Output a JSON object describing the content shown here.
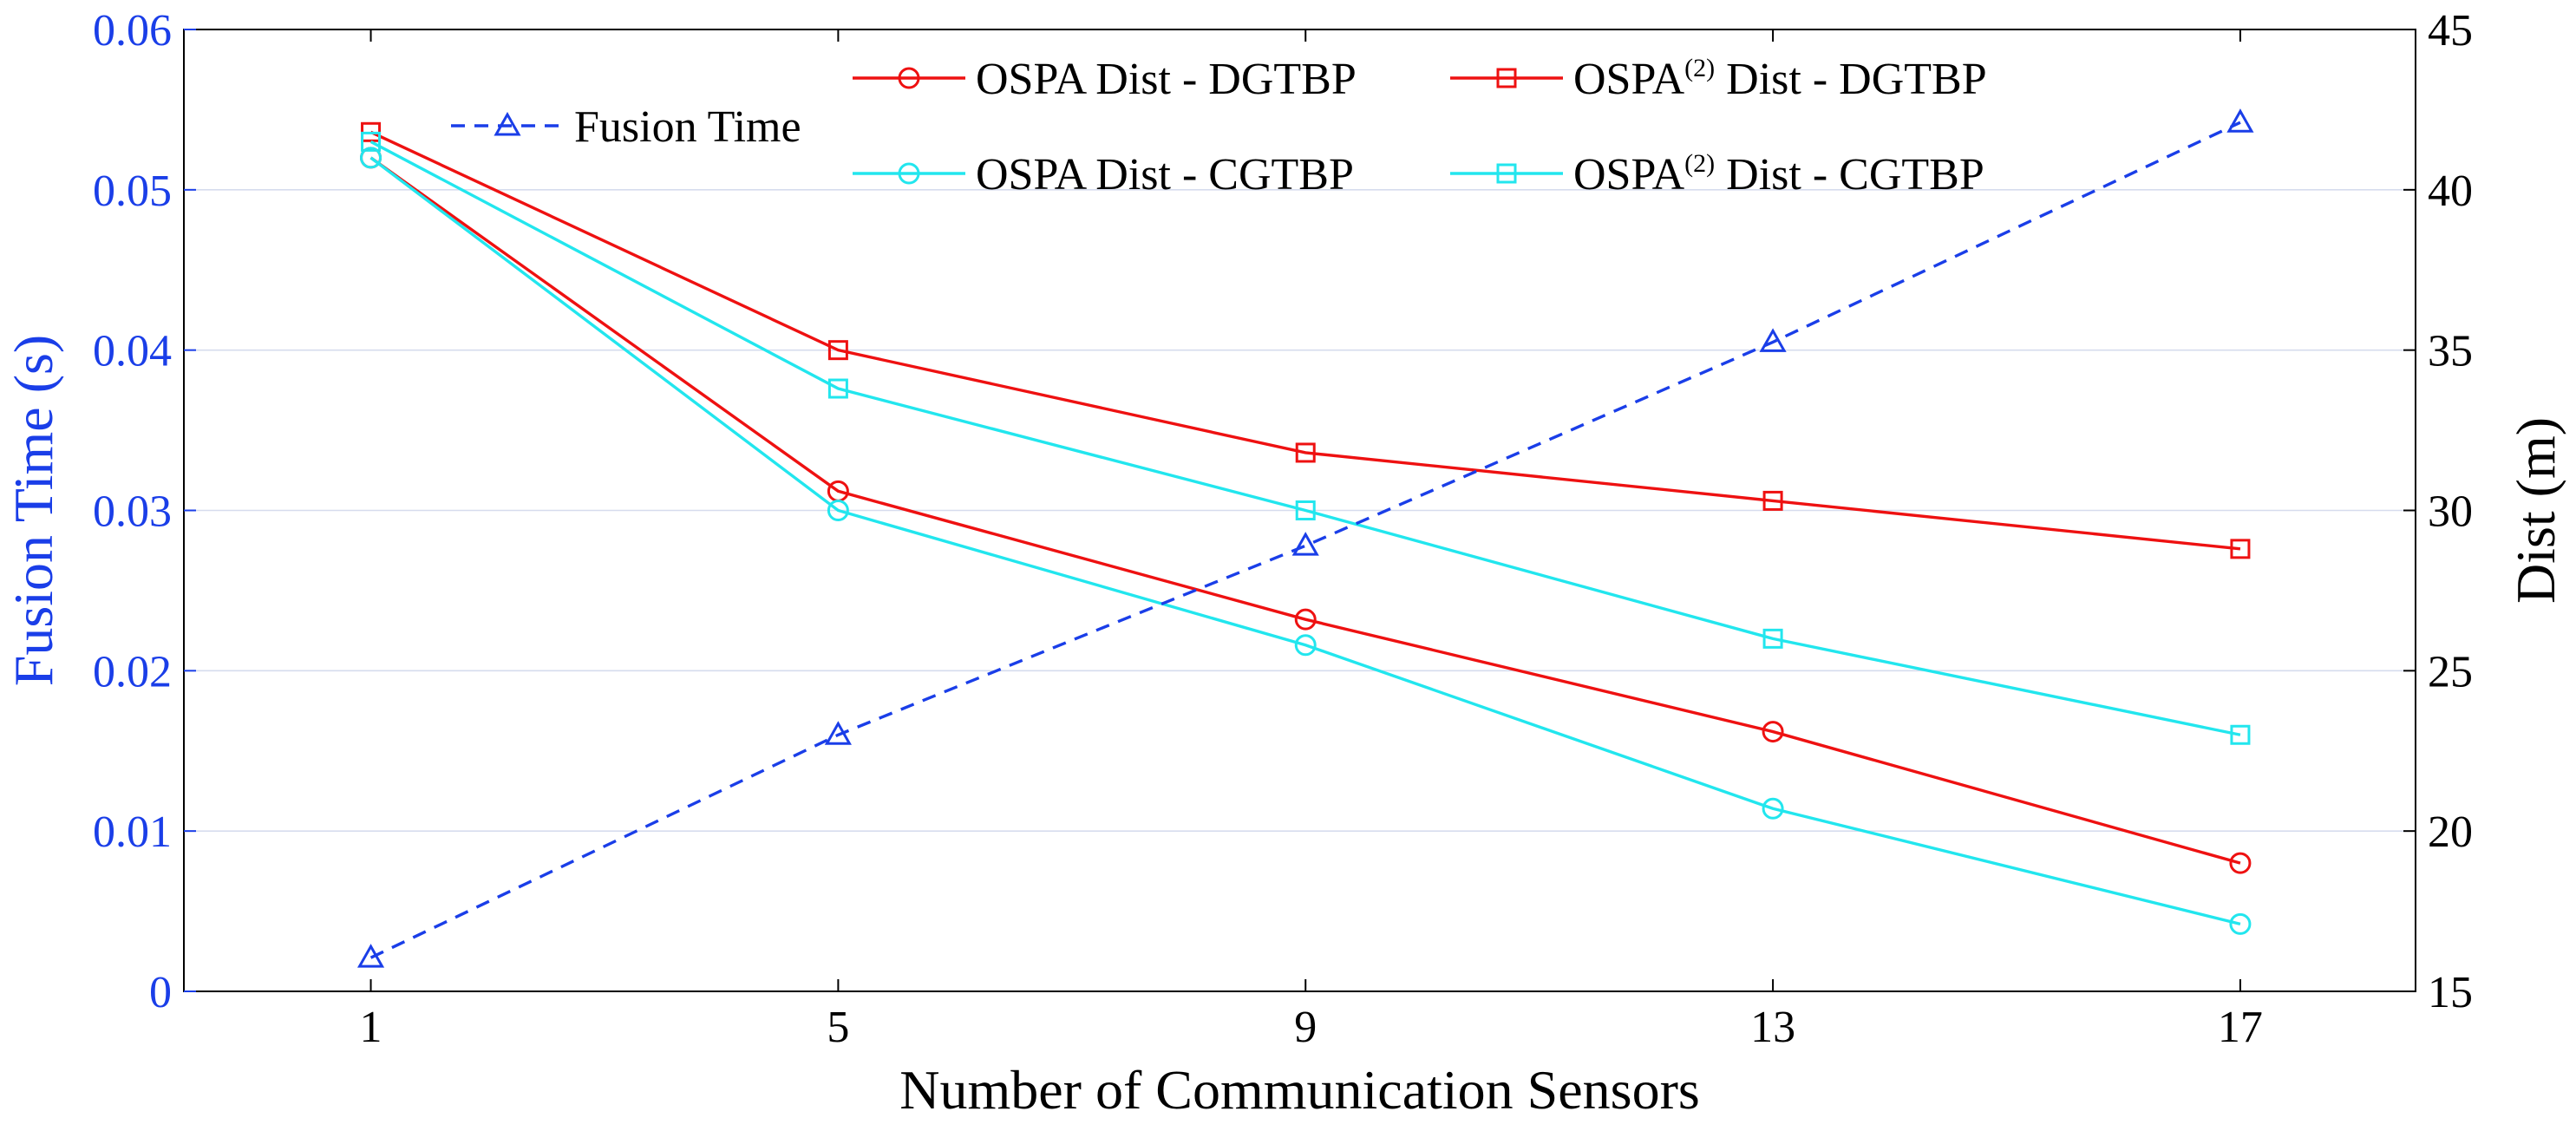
{
  "chart_data": {
    "type": "line",
    "xlabel": "Number of Communication Sensors",
    "x": [
      1,
      5,
      9,
      13,
      17
    ],
    "x_ticks": [
      "1",
      "5",
      "9",
      "13",
      "17"
    ],
    "xlim": [
      -0.6,
      18.5
    ],
    "y_left": {
      "label": "Fusion Time (s)",
      "lim": [
        0,
        0.06
      ],
      "ticks": [
        "0",
        "0.01",
        "0.02",
        "0.03",
        "0.04",
        "0.05",
        "0.06"
      ],
      "color": "#1a3ee8"
    },
    "y_right": {
      "label": "Dist (m)",
      "lim": [
        15,
        45
      ],
      "ticks": [
        "15",
        "20",
        "25",
        "30",
        "35",
        "40",
        "45"
      ],
      "color": "#000000"
    },
    "grid": true,
    "legend_placement": "top",
    "series": [
      {
        "name": "Fusion Time",
        "axis": "left",
        "values": [
          0.0021,
          0.016,
          0.0278,
          0.0405,
          0.0542
        ],
        "color": "#1a3ee8",
        "marker": "triangle",
        "dashed": true
      },
      {
        "name": "OSPA Dist - DGTBP",
        "axis": "right",
        "values": [
          41.0,
          30.6,
          26.6,
          23.1,
          19.0
        ],
        "color": "#ee1111",
        "marker": "circle",
        "dashed": false
      },
      {
        "name": "OSPA Dist - CGTBP",
        "axis": "right",
        "values": [
          41.0,
          30.0,
          25.8,
          20.7,
          17.1
        ],
        "color": "#22e6ee",
        "marker": "circle",
        "dashed": false
      },
      {
        "name": "OSPA(2) Dist - DGTBP",
        "axis": "right",
        "values": [
          41.8,
          35.0,
          31.8,
          30.3,
          28.8
        ],
        "color": "#ee1111",
        "marker": "square",
        "dashed": false
      },
      {
        "name": "OSPA(2) Dist - CGTBP",
        "axis": "right",
        "values": [
          41.5,
          33.8,
          30.0,
          26.0,
          23.0
        ],
        "color": "#22e6ee",
        "marker": "square",
        "dashed": false
      }
    ],
    "legend_entries": [
      {
        "series": 0,
        "label": "Fusion Time"
      },
      {
        "series": 1,
        "label": "OSPA Dist - DGTBP"
      },
      {
        "series": 3,
        "label": "OSPA",
        "sup": "(2)",
        "suffix": " Dist - DGTBP"
      },
      {
        "series": 2,
        "label": "OSPA Dist - CGTBP"
      },
      {
        "series": 4,
        "label": "OSPA",
        "sup": "(2)",
        "suffix": " Dist - CGTBP"
      }
    ]
  }
}
